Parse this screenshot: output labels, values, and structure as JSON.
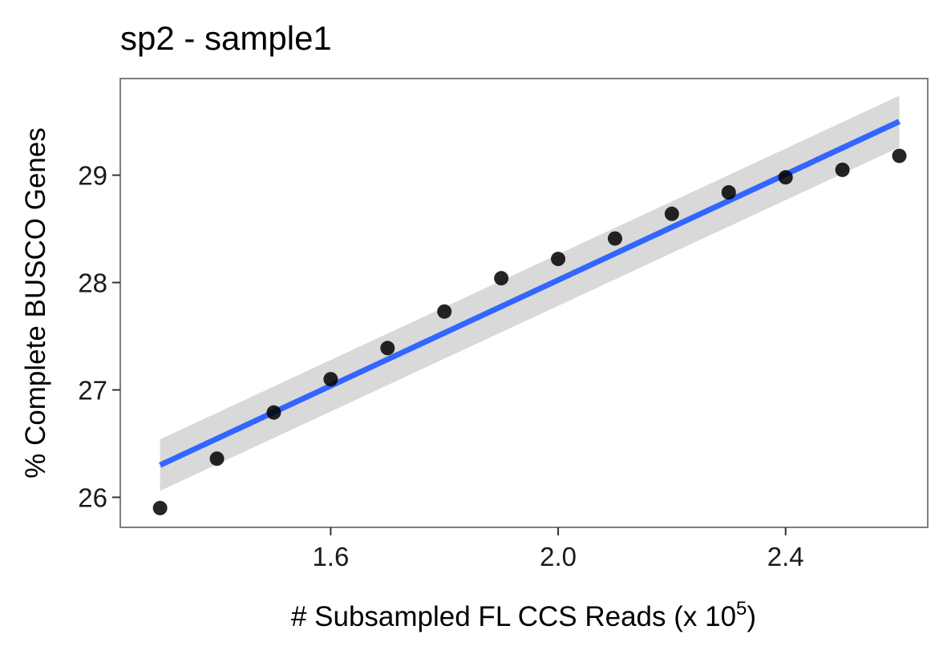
{
  "chart_data": {
    "type": "scatter",
    "title": "sp2 - sample1",
    "xlabel": {
      "text": "# Subsampled FL CCS Reads (x 10",
      "superscript": "5",
      "suffix": ")"
    },
    "ylabel": "% Complete BUSCO Genes",
    "xlim": [
      1.23,
      2.65
    ],
    "ylim": [
      25.72,
      29.9
    ],
    "x_ticks": [
      {
        "value": 1.6,
        "label": "1.6"
      },
      {
        "value": 2.0,
        "label": "2.0"
      },
      {
        "value": 2.4,
        "label": "2.4"
      }
    ],
    "y_ticks": [
      {
        "value": 26,
        "label": "26"
      },
      {
        "value": 27,
        "label": "27"
      },
      {
        "value": 28,
        "label": "28"
      },
      {
        "value": 29,
        "label": "29"
      }
    ],
    "grid": false,
    "legend": "none",
    "points": {
      "x": [
        1.3,
        1.4,
        1.5,
        1.6,
        1.7,
        1.8,
        1.9,
        2.0,
        2.1,
        2.2,
        2.3,
        2.4,
        2.5,
        2.6
      ],
      "y": [
        25.9,
        26.36,
        26.79,
        27.1,
        27.39,
        27.73,
        28.04,
        28.22,
        28.41,
        28.64,
        28.84,
        28.98,
        29.05,
        29.18
      ],
      "color": "#000000"
    },
    "fit_line": {
      "method": "linear",
      "x": [
        1.3,
        2.6
      ],
      "y": [
        26.3,
        29.5
      ],
      "color": "#3366ff",
      "ci_lower": [
        26.06,
        29.26
      ],
      "ci_upper": [
        26.54,
        29.74
      ],
      "ci_color": "#d9d9d9"
    },
    "panel_border_color": "#7f7f7f"
  }
}
